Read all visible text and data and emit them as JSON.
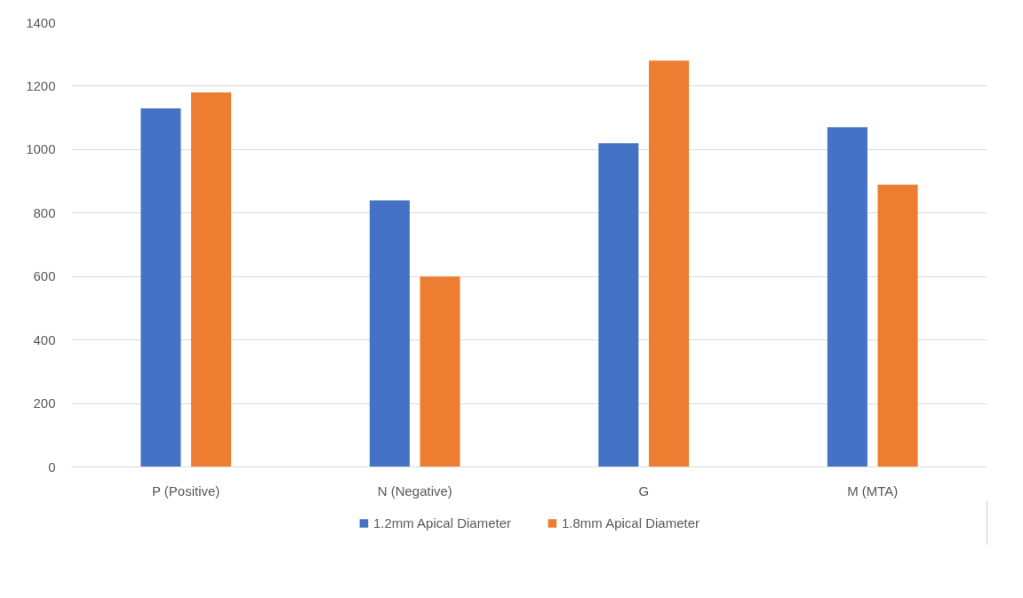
{
  "chart_data": {
    "type": "bar",
    "categories": [
      "P (Positive)",
      "N (Negative)",
      "G",
      "M (MTA)"
    ],
    "series": [
      {
        "name": "1.2mm Apical Diameter",
        "color": "#4472c4",
        "values": [
          1130,
          840,
          1020,
          1070
        ]
      },
      {
        "name": "1.8mm Apical Diameter",
        "color": "#ed7d31",
        "values": [
          1180,
          600,
          1280,
          890
        ]
      }
    ],
    "ylim": [
      0,
      1400
    ],
    "yticks": [
      0,
      200,
      400,
      600,
      800,
      1000,
      1200,
      1400
    ],
    "grid": "y",
    "legend": "bottom"
  }
}
